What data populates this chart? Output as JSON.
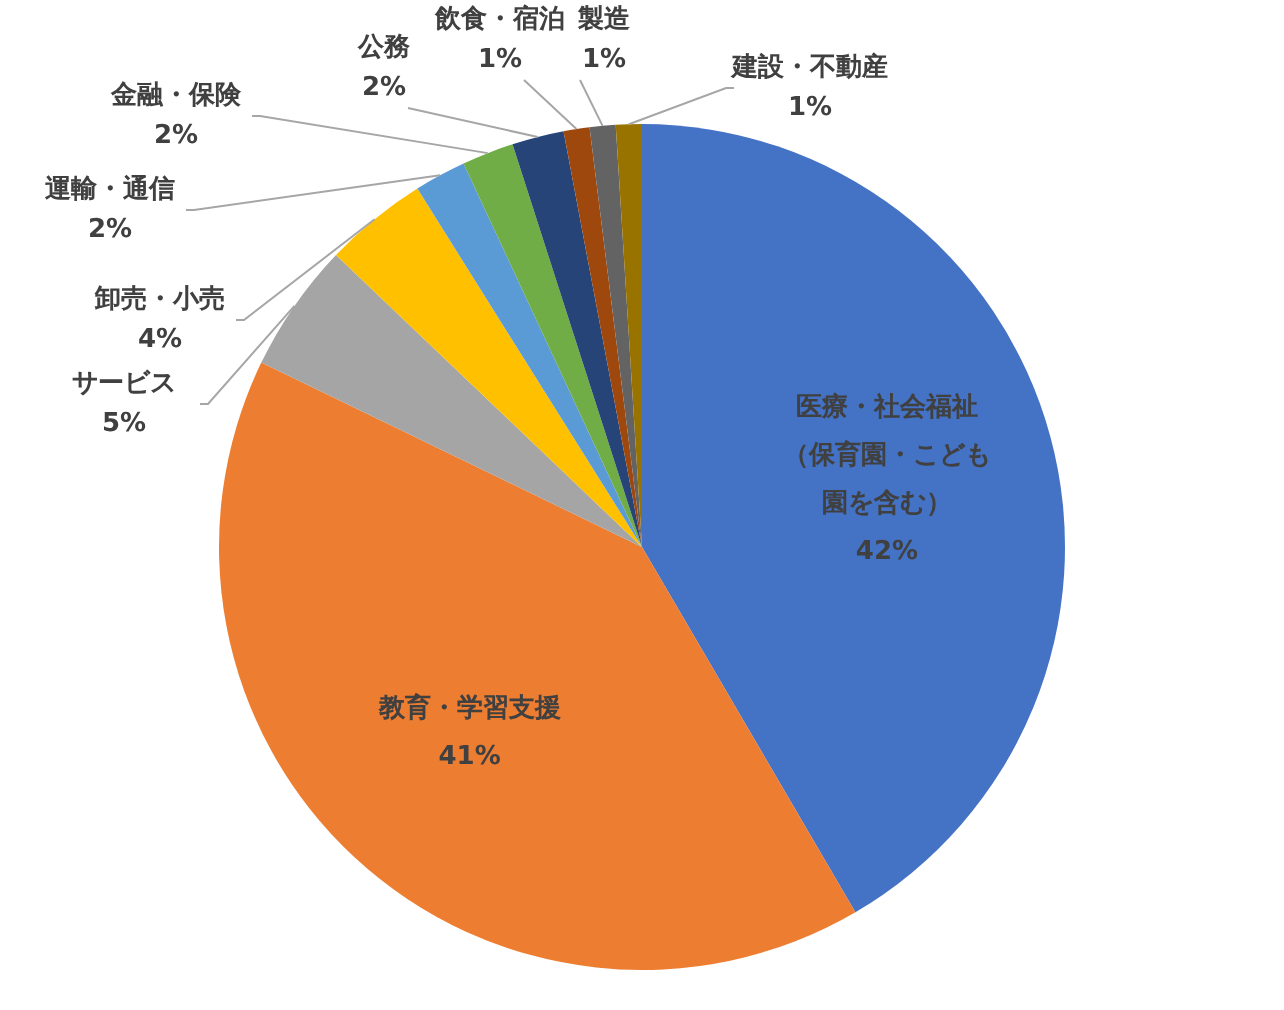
{
  "chart_data": {
    "type": "pie",
    "categories": [
      "医療・社会福祉（保育園・こども園を含む）",
      "教育・学習支援",
      "サービス",
      "卸売・小売",
      "運輸・通信",
      "金融・保険",
      "公務",
      "飲食・宿泊",
      "製造",
      "建設・不動産"
    ],
    "values": [
      42,
      41,
      5,
      4,
      2,
      2,
      2,
      1,
      1,
      1
    ],
    "colors": [
      "#4472c4",
      "#ed7d31",
      "#a5a5a5",
      "#ffc000",
      "#5b9bd5",
      "#70ad47",
      "#264478",
      "#9e480e",
      "#636363",
      "#997300"
    ],
    "value_labels": [
      "42%",
      "41%",
      "5%",
      "4%",
      "2%",
      "2%",
      "2%",
      "1%",
      "1%",
      "1%"
    ],
    "legend": false
  }
}
